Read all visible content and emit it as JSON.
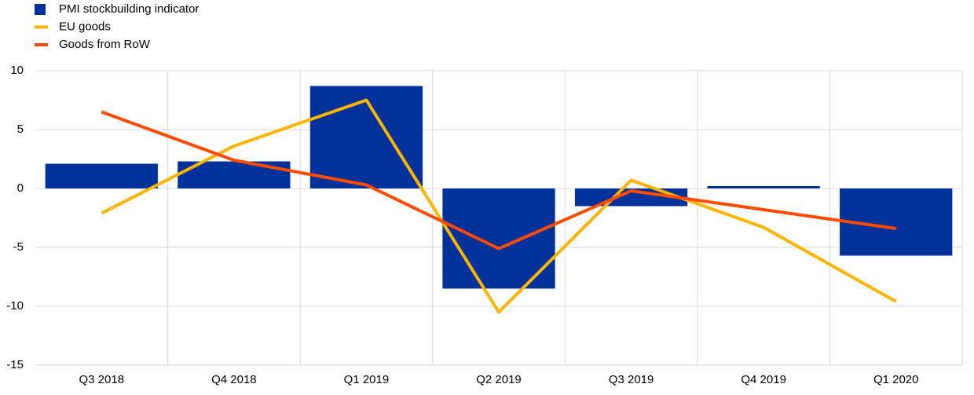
{
  "chart_data": {
    "type": "bar",
    "categories": [
      "Q3 2018",
      "Q4 2018",
      "Q1 2019",
      "Q2 2019",
      "Q3 2019",
      "Q4 2019",
      "Q1 2020"
    ],
    "series": [
      {
        "name": "PMI stockbuilding indicator",
        "type": "bar",
        "color": "#003299",
        "values": [
          2.1,
          2.3,
          8.7,
          -8.5,
          -1.5,
          0.2,
          -5.7
        ]
      },
      {
        "name": "EU goods",
        "type": "line",
        "color": "#ffb400",
        "values": [
          -2.1,
          3.6,
          7.5,
          -10.5,
          0.7,
          -3.3,
          -9.6
        ]
      },
      {
        "name": "Goods from RoW",
        "type": "line",
        "color": "#ff4b00",
        "values": [
          6.5,
          2.4,
          0.3,
          -5.1,
          -0.2,
          -1.8,
          -3.4
        ]
      }
    ],
    "ylim": [
      -15,
      10
    ],
    "yticks": [
      -15,
      -10,
      -5,
      0,
      5,
      10
    ],
    "grid": true
  }
}
